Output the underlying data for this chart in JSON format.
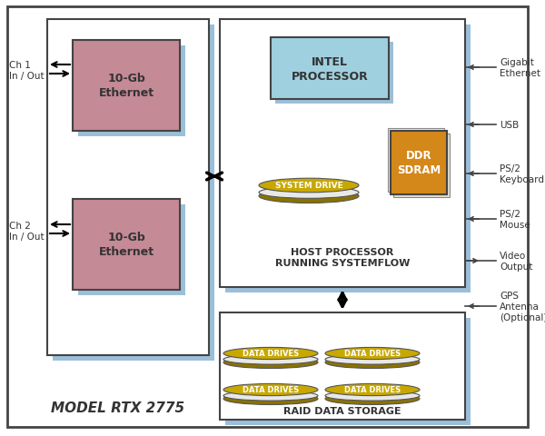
{
  "bg_color": "#ffffff",
  "light_blue": "#a8cfe0",
  "pink": "#c48a96",
  "light_cyan": "#9fd0e0",
  "orange": "#d4881a",
  "gold_top": "#c8a800",
  "gold_body": "#8a7200",
  "shadow_blue": "#9bbfd8",
  "border_dark": "#444444",
  "text_dark": "#222222",
  "ch1_label": "Ch 1\nIn / Out",
  "ch2_label": "Ch 2\nIn / Out",
  "eth_label": "10-Gb\nEthernet",
  "intel_label": "INTEL\nPROCESSOR",
  "system_drive_label": "SYSTEM DRIVE",
  "ddr_label": "DDR\nSDRAM",
  "host_label": "HOST PROCESSOR\nRUNNING SYSTEMFLOW",
  "data_drive_label": "DATA DRIVES",
  "raid_label": "RAID DATA STORAGE",
  "model_label": "MODEL RTX 2775",
  "right_labels": [
    [
      "Gigabit",
      "Ethernet"
    ],
    [
      "USB"
    ],
    [
      "PS/2",
      "Keyboard"
    ],
    [
      "PS/2",
      "Mouse"
    ],
    [
      "Video",
      "Output"
    ],
    [
      "GPS",
      "Antenna",
      "(Optional)"
    ]
  ],
  "right_arrows_in": [
    true,
    true,
    true,
    true,
    false,
    true
  ]
}
